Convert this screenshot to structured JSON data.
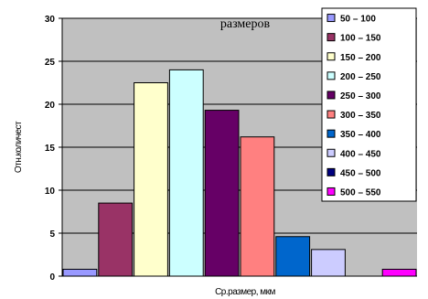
{
  "chart_data": {
    "type": "bar",
    "title": "размеров",
    "xlabel": "Ср.размер, мкм",
    "ylabel": "Отн.количест",
    "ylim": [
      0,
      30
    ],
    "yticks": [
      "0",
      "5",
      "10",
      "15",
      "20",
      "25",
      "30"
    ],
    "grid": true,
    "legend_position": "right",
    "series": [
      {
        "name": "50 – 100",
        "value": 0.8,
        "color": "#9999ff"
      },
      {
        "name": "100 – 150",
        "value": 8.5,
        "color": "#993366"
      },
      {
        "name": "150 – 200",
        "value": 22.5,
        "color": "#ffffcc"
      },
      {
        "name": "200 – 250",
        "value": 24.0,
        "color": "#ccffff"
      },
      {
        "name": "250 – 300",
        "value": 19.3,
        "color": "#660066"
      },
      {
        "name": "300 – 350",
        "value": 16.2,
        "color": "#ff8080"
      },
      {
        "name": "350 – 400",
        "value": 4.6,
        "color": "#0066cc"
      },
      {
        "name": "400 – 450",
        "value": 3.1,
        "color": "#ccccff"
      },
      {
        "name": "450 – 500",
        "value": 0,
        "color": "#000080"
      },
      {
        "name": "500 – 550",
        "value": 0.8,
        "color": "#ff00ff"
      }
    ],
    "plot_background": "#c0c0c0"
  }
}
